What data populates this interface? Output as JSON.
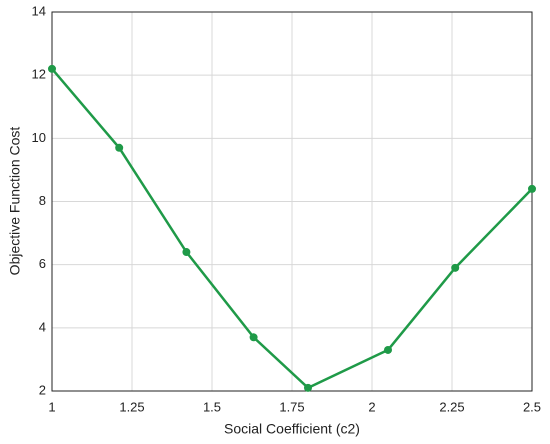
{
  "chart_data": {
    "type": "line",
    "xlabel": "Social Coefficient (c2)",
    "ylabel": "Objective Function Cost",
    "x": [
      1,
      1.21,
      1.42,
      1.63,
      1.8,
      2.05,
      2.26,
      2.5
    ],
    "values": [
      12.2,
      9.7,
      6.4,
      3.7,
      2.1,
      3.3,
      5.9,
      8.4
    ],
    "color": "#1f9a48",
    "xlim": [
      1,
      2.5
    ],
    "xticks": [
      1,
      1.25,
      1.5,
      1.75,
      2,
      2.25,
      2.5
    ],
    "ylim": [
      2,
      14
    ],
    "yticks": [
      2,
      4,
      6,
      8,
      10,
      12,
      14
    ],
    "grid": true
  }
}
